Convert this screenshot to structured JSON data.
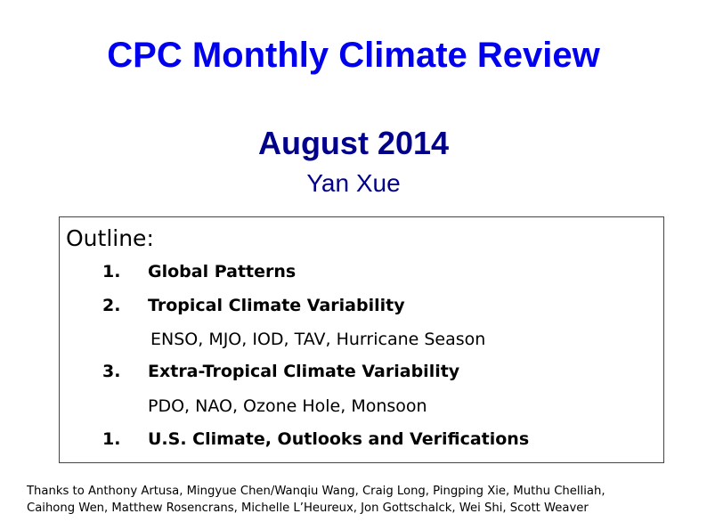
{
  "slide": {
    "title": "CPC Monthly Climate Review",
    "subtitle": "August 2014",
    "author": "Yan Xue"
  },
  "outline": {
    "heading": "Outline:",
    "items": [
      {
        "number": "1.",
        "label": "Global Patterns"
      },
      {
        "number": "2.",
        "label": "Tropical Climate Variability",
        "sub": "ENSO, MJO, IOD, TAV, Hurricane Season"
      },
      {
        "number": "3.",
        "label": "Extra-Tropical Climate Variability",
        "sub": "PDO, NAO, Ozone Hole, Monsoon"
      },
      {
        "number": "1.",
        "label": "U.S. Climate, Outlooks and Verifications"
      }
    ]
  },
  "acknowledgements": {
    "line1": "Thanks to Anthony Artusa,  Mingyue Chen/Wanqiu Wang, Craig Long, Pingping Xie, Muthu Chelliah,",
    "line2": "Caihong Wen, Matthew Rosencrans, Michelle L’Heureux, Jon Gottschalck, Wei Shi, Scott Weaver"
  },
  "colors": {
    "title": "#0000ee",
    "subtitle": "#00008b"
  }
}
